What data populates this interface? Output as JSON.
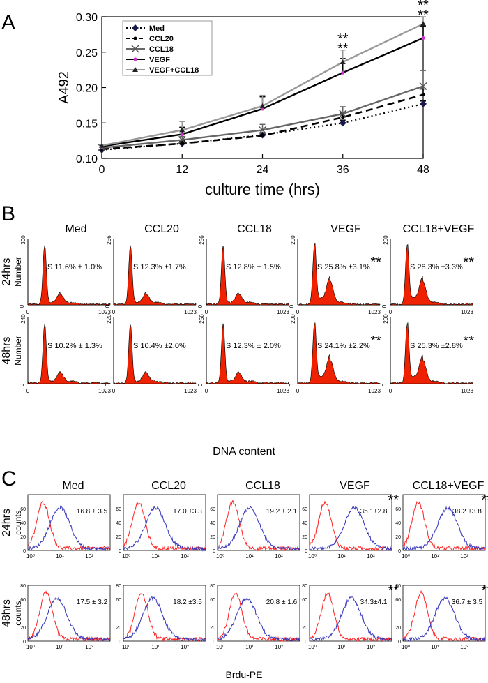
{
  "panels": {
    "a": "A",
    "b": "B",
    "c": "C"
  },
  "chart_data": [
    {
      "type": "line",
      "panel": "A",
      "x": [
        0,
        12,
        24,
        36,
        48
      ],
      "xlabel": "culture time (hrs)",
      "ylabel": "A492",
      "xlim": [
        0,
        48
      ],
      "ylim": [
        0.1,
        0.3
      ],
      "xticks": [
        "0",
        "12",
        "24",
        "36",
        "48"
      ],
      "yticks": [
        "0.10",
        "0.15",
        "0.20",
        "0.25",
        "0.30"
      ],
      "legend_position": "top-left",
      "series": [
        {
          "name": "Med",
          "color": "#000000",
          "dash": "dotted",
          "values": [
            0.112,
            0.121,
            0.133,
            0.15,
            0.177
          ],
          "err": [
            0.002,
            0.003,
            0.003,
            0.004,
            0.004
          ]
        },
        {
          "name": "CCL20",
          "color": "#000000",
          "dash": "dashed",
          "values": [
            0.113,
            0.121,
            0.132,
            0.158,
            0.19
          ],
          "err": [
            0.002,
            0.004,
            0.004,
            0.006,
            0.008
          ]
        },
        {
          "name": "CCL18",
          "color": "#666666",
          "dash": "solid",
          "values": [
            0.115,
            0.126,
            0.14,
            0.163,
            0.202
          ],
          "err": [
            0.003,
            0.005,
            0.008,
            0.01,
            0.022
          ]
        },
        {
          "name": "VEGF",
          "color": "#000000",
          "dash": "solid",
          "values": [
            0.117,
            0.134,
            0.17,
            0.221,
            0.27
          ],
          "err": [
            0.003,
            0.01,
            0.017,
            0.02,
            0.017
          ]
        },
        {
          "name": "VEGF+CCL18",
          "color": "#999999",
          "dash": "solid",
          "values": [
            0.118,
            0.14,
            0.174,
            0.236,
            0.29
          ],
          "err": [
            0.003,
            0.012,
            0.015,
            0.017,
            0.01
          ]
        }
      ],
      "annotations": [
        {
          "x": 36,
          "text": "**",
          "line": 1
        },
        {
          "x": 36,
          "text": "**",
          "line": 2
        },
        {
          "x": 48,
          "text": "**",
          "line": 1
        },
        {
          "x": 48,
          "text": "**",
          "line": 2
        }
      ]
    },
    {
      "type": "histogram",
      "panel": "B",
      "title": "DNA content",
      "ylabel": "Number",
      "x_range": [
        0,
        1023
      ],
      "x_tick_labels": [
        "0",
        "1023"
      ],
      "columns": [
        "Med",
        "CCL20",
        "CCL18",
        "VEGF",
        "CCL18+VEGF"
      ],
      "rows": [
        {
          "label": "24hrs",
          "ymax": [
            "300",
            "256",
            "256",
            "200",
            "200"
          ],
          "s_text": [
            "S 11.6% ± 1.0%",
            "S 12.3% ±1.7%",
            "S 12.8% ± 1.5%",
            "S 25.8% ±3.1%",
            "S 28.3% ±3.3%"
          ],
          "sig": [
            "",
            "",
            "",
            "**",
            "**"
          ]
        },
        {
          "label": "48hrs",
          "ymax": [
            "240",
            "220",
            "256",
            "200",
            "200"
          ],
          "s_text": [
            "S 10.2% ± 1.3%",
            "S 10.4% ±2.0%",
            "S 12.3% ± 2.0%",
            "S 24.1% ±2.2%",
            "S 25.3% ±2.8%"
          ],
          "sig": [
            "",
            "",
            "",
            "**",
            "**"
          ]
        }
      ],
      "fill_color": "#ee2200"
    },
    {
      "type": "histogram",
      "panel": "C",
      "xlabel": "Brdu-PE",
      "ylabel": "counts",
      "x_tick_labels": [
        "10⁰",
        "10¹",
        "10²"
      ],
      "y_tick_labels": [
        "0",
        "20",
        "40",
        "60",
        "80"
      ],
      "columns": [
        "Med",
        "CCL20",
        "CCL18",
        "VEGF",
        "CCL18+VEGF"
      ],
      "rows": [
        {
          "label": "24hrs",
          "value_text": [
            "16.8 ± 3.5",
            "17.0 ±3.3",
            "19.2 ± 2.1",
            "35.1±2.8",
            "38.2 ±3.8"
          ],
          "sig": [
            "",
            "",
            "",
            "**",
            "**"
          ]
        },
        {
          "label": "48hrs",
          "value_text": [
            "17.5 ± 3.2",
            "18.2 ±3.5",
            "20.8 ± 1.6",
            "34.3±4.1",
            "36.7 ± 3.5"
          ],
          "sig": [
            "",
            "",
            "",
            "**",
            "**"
          ]
        }
      ],
      "control_color": "#ff2020",
      "sample_color": "#3333bb"
    }
  ]
}
